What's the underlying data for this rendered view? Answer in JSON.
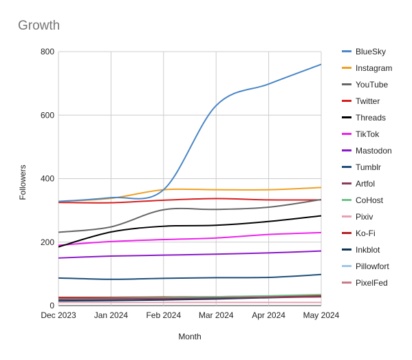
{
  "chart_data": {
    "type": "line",
    "title": "Growth",
    "xlabel": "Month",
    "ylabel": "Followers",
    "categories": [
      "Dec 2023",
      "Jan 2024",
      "Feb 2024",
      "Mar 2024",
      "Apr 2024",
      "May 2024"
    ],
    "ylim": [
      0,
      800
    ],
    "yticks": [
      0,
      200,
      400,
      600,
      800
    ],
    "grid": true,
    "legend_position": "right",
    "series": [
      {
        "name": "BlueSky",
        "color": "#4a86c8",
        "values": [
          328,
          340,
          365,
          630,
          698,
          760
        ]
      },
      {
        "name": "Instagram",
        "color": "#f0a022",
        "values": [
          328,
          338,
          365,
          365,
          365,
          372
        ]
      },
      {
        "name": "YouTube",
        "color": "#666666",
        "values": [
          231,
          248,
          302,
          303,
          310,
          334
        ]
      },
      {
        "name": "Twitter",
        "color": "#d62020",
        "values": [
          325,
          324,
          332,
          337,
          333,
          333
        ]
      },
      {
        "name": "Threads",
        "color": "#000000",
        "values": [
          185,
          232,
          250,
          253,
          265,
          283
        ]
      },
      {
        "name": "TikTok",
        "color": "#ee22ee",
        "values": [
          190,
          202,
          208,
          213,
          224,
          230
        ]
      },
      {
        "name": "Mastodon",
        "color": "#8a17c8",
        "values": [
          150,
          156,
          159,
          162,
          166,
          172
        ]
      },
      {
        "name": "Tumblr",
        "color": "#1e4e79",
        "values": [
          87,
          83,
          86,
          88,
          89,
          98
        ]
      },
      {
        "name": "Artfol",
        "color": "#8b3a5a",
        "values": [
          20,
          21,
          22,
          24,
          26,
          28
        ]
      },
      {
        "name": "CoHost",
        "color": "#6fc08a",
        "values": [
          22,
          23,
          25,
          28,
          31,
          35
        ]
      },
      {
        "name": "Pixiv",
        "color": "#e6a2b4",
        "values": [
          10,
          10,
          10,
          10,
          10,
          10
        ]
      },
      {
        "name": "Ko-Fi",
        "color": "#b22222",
        "values": [
          26,
          26,
          27,
          28,
          30,
          31
        ]
      },
      {
        "name": "Inkblot",
        "color": "#0f3556",
        "values": [
          15,
          16,
          18,
          21,
          25,
          28
        ]
      },
      {
        "name": "Pillowfort",
        "color": "#9fc7e8",
        "values": [
          18,
          20,
          22,
          26,
          30,
          34
        ]
      },
      {
        "name": "PixelFed",
        "color": "#c87a86",
        "values": [
          24,
          25,
          25,
          26,
          27,
          28
        ]
      }
    ]
  }
}
